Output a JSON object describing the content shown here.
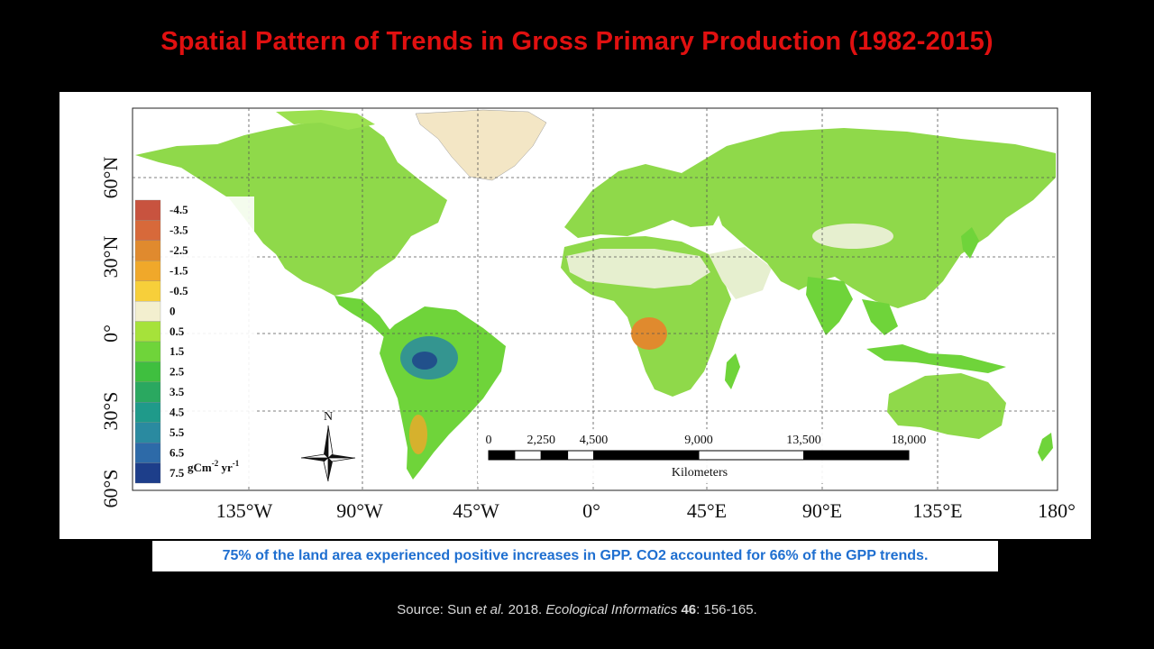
{
  "slide": {
    "title": "Spatial Pattern of Trends in Gross Primary Production (1982-2015)"
  },
  "map": {
    "lat_labels": [
      "60°N",
      "30°N",
      "0°",
      "30°S",
      "60°S"
    ],
    "lon_labels": [
      "135°W",
      "90°W",
      "45°W",
      "0°",
      "45°E",
      "90°E",
      "135°E",
      "180°"
    ],
    "legend": {
      "unit": "gCm",
      "unit_exp1": "-2",
      "unit_mid": " yr",
      "unit_exp2": "-1",
      "classes": [
        {
          "label": "-4.5",
          "color": "#c8533f"
        },
        {
          "label": "-3.5",
          "color": "#d7693a"
        },
        {
          "label": "-2.5",
          "color": "#e08a2e"
        },
        {
          "label": "-1.5",
          "color": "#f0a82a"
        },
        {
          "label": "-0.5",
          "color": "#f7cf3a"
        },
        {
          "label": "0",
          "color": "#f3efcf"
        },
        {
          "label": "0.5",
          "color": "#a6e23a"
        },
        {
          "label": "1.5",
          "color": "#6fd43a"
        },
        {
          "label": "2.5",
          "color": "#3fbf3f"
        },
        {
          "label": "3.5",
          "color": "#2aa860"
        },
        {
          "label": "4.5",
          "color": "#1f9a8a"
        },
        {
          "label": "5.5",
          "color": "#2a8aa0"
        },
        {
          "label": "6.5",
          "color": "#2d6aa8"
        },
        {
          "label": "7.5",
          "color": "#1d3e8a"
        }
      ]
    },
    "north_arrow_label": "N",
    "scale_bar": {
      "ticks": [
        "0",
        "2,250",
        "4,500",
        "9,000",
        "13,500",
        "18,000"
      ],
      "unit": "Kilometers"
    },
    "colors": {
      "ocean": "#ffffff",
      "land_positive": "#8fd94a",
      "land_strong": "#2aa860",
      "land_neutral": "#f3efcf",
      "land_negative": "#f0a82a",
      "greenland": "#f3e6c5",
      "grid": "#555555"
    }
  },
  "caption": {
    "text": "75% of the land area experienced positive increases in GPP.  CO2 accounted for 66% of the GPP trends."
  },
  "source": {
    "prefix": "Source: Sun ",
    "etal": "et al.",
    "middle": " 2018. ",
    "journal": "Ecological Informatics",
    "space": " ",
    "volume": "46",
    "pages": ": 156-165."
  }
}
